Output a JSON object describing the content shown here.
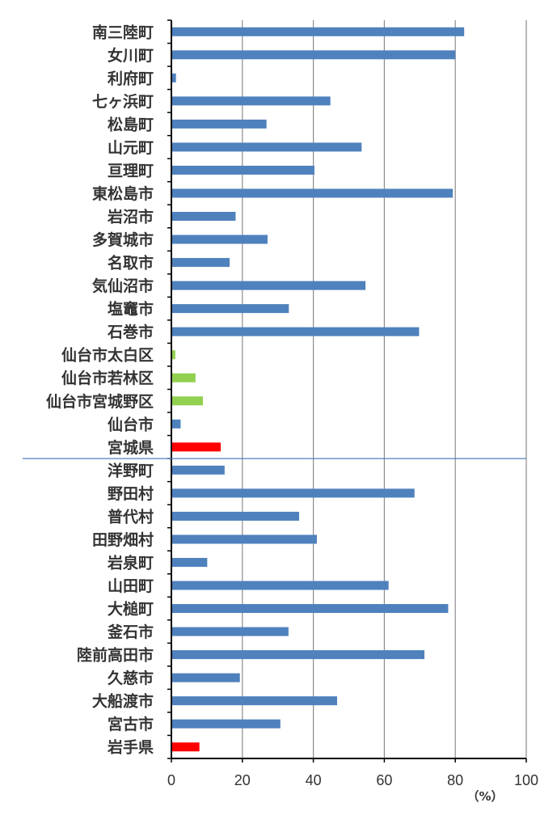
{
  "chart_data": {
    "type": "bar",
    "orientation": "horizontal",
    "categories": [
      "南三陸町",
      "女川町",
      "利府町",
      "七ヶ浜町",
      "松島町",
      "山元町",
      "亘理町",
      "東松島市",
      "岩沼市",
      "多賀城市",
      "名取市",
      "気仙沼市",
      "塩竈市",
      "石巻市",
      "仙台市太白区",
      "仙台市若林区",
      "仙台市宮城野区",
      "仙台市",
      "宮城県",
      "洋野町",
      "野田村",
      "普代村",
      "田野畑村",
      "岩泉町",
      "山田町",
      "大槌町",
      "釜石市",
      "陸前高田市",
      "久慈市",
      "大船渡市",
      "宮古市",
      "岩手県"
    ],
    "values": [
      82.5,
      80,
      1.3,
      44.8,
      26.8,
      53.6,
      40.3,
      79.3,
      18.1,
      27.1,
      16.4,
      54.7,
      33.1,
      69.8,
      1.1,
      6.8,
      8.9,
      2.6,
      13.9,
      15.0,
      68.5,
      36.0,
      41.0,
      10.1,
      61.2,
      78.0,
      33.0,
      71.3,
      19.3,
      46.7,
      30.7,
      7.9
    ],
    "colors": [
      "#4f81bd",
      "#4f81bd",
      "#4f81bd",
      "#4f81bd",
      "#4f81bd",
      "#4f81bd",
      "#4f81bd",
      "#4f81bd",
      "#4f81bd",
      "#4f81bd",
      "#4f81bd",
      "#4f81bd",
      "#4f81bd",
      "#4f81bd",
      "#92d050",
      "#92d050",
      "#92d050",
      "#4f81bd",
      "#ff0000",
      "#4f81bd",
      "#4f81bd",
      "#4f81bd",
      "#4f81bd",
      "#4f81bd",
      "#4f81bd",
      "#4f81bd",
      "#4f81bd",
      "#4f81bd",
      "#4f81bd",
      "#4f81bd",
      "#4f81bd",
      "#ff0000"
    ],
    "xlim": [
      0,
      100
    ],
    "xticks": [
      "0",
      "20",
      "40",
      "60",
      "80",
      "100"
    ],
    "xlabel": "（%）",
    "grid": "vertical",
    "separator_after_category": "宮城県",
    "separator_color": "#4f81bd"
  }
}
